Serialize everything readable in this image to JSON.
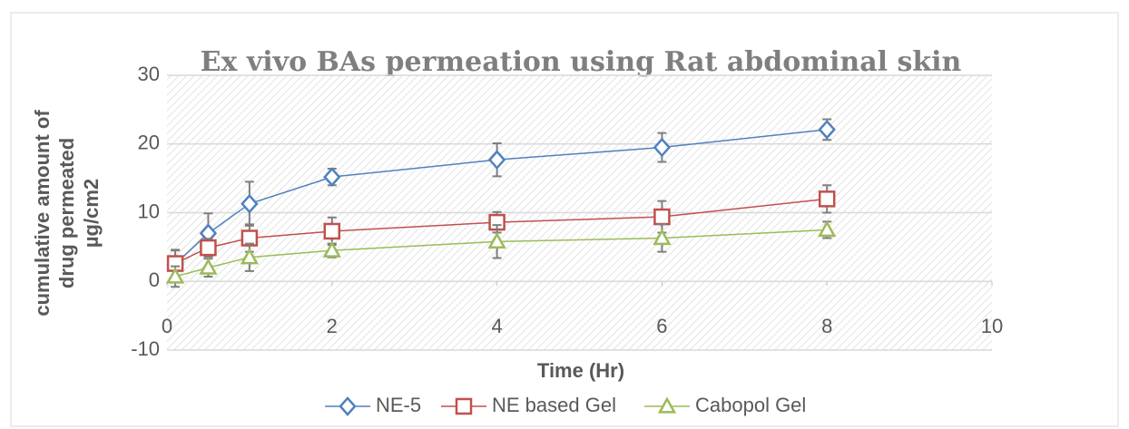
{
  "chart_data": {
    "type": "line",
    "title": "Ex vivo BAs permeation using Rat abdominal skin",
    "xlabel": "Time (Hr)",
    "ylabel": [
      "cumulative amount of",
      "drug permeated",
      "µg/cm2"
    ],
    "x": [
      0.1,
      0.5,
      1,
      2,
      4,
      6,
      8
    ],
    "xlim": [
      0,
      10
    ],
    "xticks": [
      0,
      2,
      4,
      6,
      8,
      10
    ],
    "ylim": [
      -10,
      30
    ],
    "yticks": [
      -10,
      0,
      10,
      20,
      30
    ],
    "grid": true,
    "legend": "bottom",
    "series": [
      {
        "name": "NE-5",
        "color": "#4f81bd",
        "marker": "diamond",
        "values": [
          2.5,
          7.0,
          11.3,
          15.2,
          17.7,
          19.5,
          22.1
        ],
        "errors": [
          2.0,
          2.9,
          3.2,
          1.2,
          2.4,
          2.1,
          1.5
        ]
      },
      {
        "name": "NE based Gel",
        "color": "#c0504d",
        "marker": "square",
        "values": [
          2.6,
          4.9,
          6.3,
          7.3,
          8.6,
          9.4,
          12.0
        ],
        "errors": [
          2.0,
          1.3,
          2.0,
          2.0,
          1.5,
          2.3,
          2.0
        ]
      },
      {
        "name": "Cabopol Gel",
        "color": "#9bbb59",
        "marker": "triangle",
        "values": [
          0.7,
          2.0,
          3.5,
          4.5,
          5.8,
          6.3,
          7.5
        ],
        "errors": [
          1.5,
          1.3,
          2.0,
          1.0,
          2.4,
          2.0,
          1.2
        ]
      }
    ]
  }
}
